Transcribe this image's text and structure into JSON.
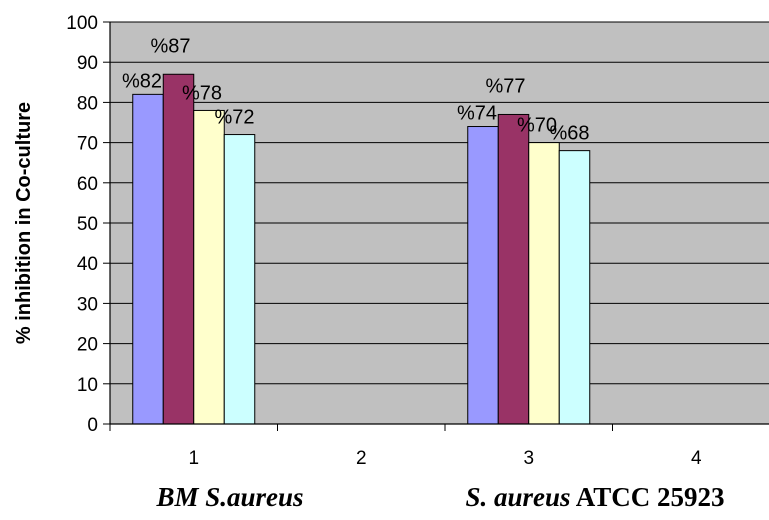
{
  "chart_data": {
    "type": "bar",
    "title": "",
    "xlabel": "",
    "ylabel": "% inhibition in Co-culture",
    "ylim": [
      0,
      100
    ],
    "yticks": [
      0,
      10,
      20,
      30,
      40,
      50,
      60,
      70,
      80,
      90,
      100
    ],
    "categories": [
      "1",
      "2",
      "3",
      "4"
    ],
    "series": [
      {
        "values": [
          82,
          null,
          74,
          null
        ],
        "labels": [
          "%82",
          "",
          "%74",
          ""
        ],
        "color": "#9999ff"
      },
      {
        "values": [
          87,
          null,
          77,
          null
        ],
        "labels": [
          "%87",
          "",
          "%77",
          ""
        ],
        "color": "#993366"
      },
      {
        "values": [
          78,
          null,
          70,
          null
        ],
        "labels": [
          "%78",
          "",
          "%70",
          ""
        ],
        "color": "#ffffcc"
      },
      {
        "values": [
          72,
          null,
          68,
          null
        ],
        "labels": [
          "%72",
          "",
          "%68",
          ""
        ],
        "color": "#ccffff"
      }
    ],
    "grid": true,
    "plot_background": "#c0c0c0",
    "group_labels": [
      {
        "italic": "BM S.aureus",
        "normal": ""
      },
      {
        "italic": "S. aureus",
        "normal": " ATCC 25923"
      }
    ]
  }
}
